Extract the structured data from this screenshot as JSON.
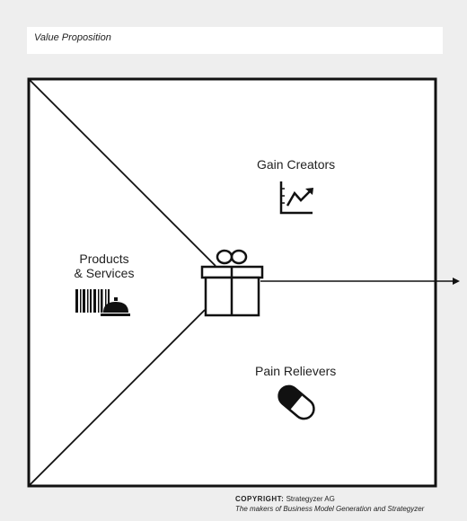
{
  "header": {
    "title": "Value Proposition"
  },
  "sections": {
    "gain_creators": "Gain Creators",
    "products_line1": "Products",
    "products_line2": "& Services",
    "pain_relievers": "Pain Relievers"
  },
  "icons": {
    "gain": "chart-up-icon",
    "products": "barcode-and-cloche-icon",
    "center": "gift-icon",
    "pain": "pill-icon"
  },
  "footer": {
    "copyright_label": "COPYRIGHT:",
    "copyright_owner": "Strategyzer AG",
    "tagline": "The makers of Business Model Generation and Strategyzer"
  }
}
